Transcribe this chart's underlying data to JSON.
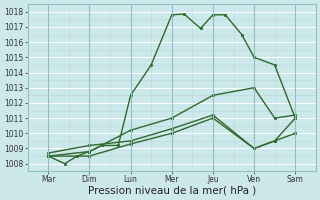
{
  "x_labels": [
    "Mar",
    "Dim",
    "Lun",
    "Mer",
    "Jeu",
    "Ven",
    "Sam"
  ],
  "ylim": [
    1007.5,
    1018.5
  ],
  "yticks": [
    1008,
    1009,
    1010,
    1011,
    1012,
    1013,
    1014,
    1015,
    1016,
    1017,
    1018
  ],
  "xlabel": "Pression niveau de la mer( hPa )",
  "bg_color": "#cde8ea",
  "grid_color": "#b0d8da",
  "line_color": "#2d6a2d",
  "tick_label_fontsize": 5.5,
  "xlabel_fontsize": 7.5,
  "lines": [
    {
      "x": [
        0,
        0.4,
        0.7,
        1.0,
        1.3,
        1.7,
        2.0,
        2.5,
        3.0,
        3.3,
        3.7,
        4.0,
        4.3,
        4.7,
        5.0,
        5.5,
        6.0
      ],
      "y": [
        1008.5,
        1008.0,
        1008.5,
        1008.8,
        1009.2,
        1009.2,
        1012.5,
        1014.5,
        1017.8,
        1017.85,
        1016.9,
        1017.8,
        1017.8,
        1016.5,
        1015.0,
        1014.5,
        1011.0
      ],
      "lw": 1.0,
      "ms": 2.0,
      "solid": true
    },
    {
      "x": [
        0,
        1.0,
        2.0,
        3.0,
        4.0,
        5.0,
        5.5,
        6.0
      ],
      "y": [
        1008.5,
        1008.8,
        1010.2,
        1011.0,
        1012.5,
        1013.0,
        1011.0,
        1011.2
      ],
      "lw": 1.0,
      "ms": 2.0,
      "solid": true
    },
    {
      "x": [
        0,
        1.0,
        2.0,
        3.0,
        4.0,
        5.0,
        5.5,
        6.0
      ],
      "y": [
        1008.5,
        1008.5,
        1009.3,
        1010.0,
        1011.0,
        1009.0,
        1009.5,
        1011.0
      ],
      "lw": 1.0,
      "ms": 2.0,
      "solid": true
    },
    {
      "x": [
        0,
        1.0,
        2.0,
        3.0,
        4.0,
        5.0,
        5.5,
        6.0
      ],
      "y": [
        1008.7,
        1009.2,
        1009.5,
        1010.3,
        1011.2,
        1009.0,
        1009.5,
        1010.0
      ],
      "lw": 1.0,
      "ms": 2.0,
      "solid": true
    }
  ]
}
